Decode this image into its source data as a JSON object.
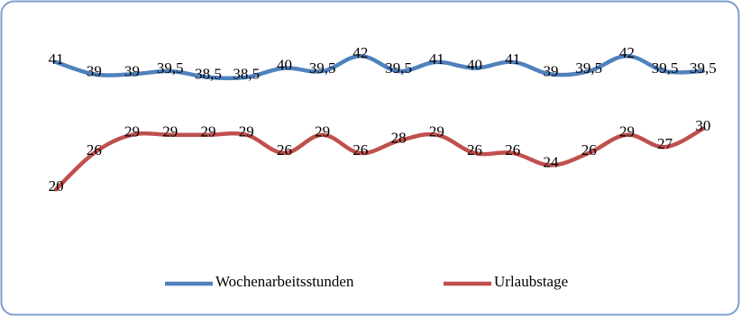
{
  "chart_data": {
    "type": "line",
    "categories": [
      null,
      null,
      null,
      null,
      null,
      null,
      null,
      null,
      null,
      null,
      null,
      null,
      null,
      null,
      null,
      null,
      null,
      null
    ],
    "ylim": [
      15,
      45
    ],
    "series": [
      {
        "name": "Wochenarbeitsstunden",
        "color": "#4f81bd",
        "values": [
          41,
          39,
          39,
          39.5,
          38.5,
          38.5,
          40,
          39.5,
          42,
          39.5,
          41,
          40,
          41,
          39,
          39.5,
          42,
          39.5,
          39.5
        ],
        "value_labels": [
          "41",
          "39",
          "39",
          "39,5",
          "38,5",
          "38,5",
          "40",
          "39,5",
          "42",
          "39,5",
          "41",
          "40",
          "41",
          "39",
          "39,5",
          "42",
          "39,5",
          "39,5"
        ]
      },
      {
        "name": "Urlaubstage",
        "color": "#c0504d",
        "values": [
          20,
          26,
          29,
          29,
          29,
          29,
          26,
          29,
          26,
          28,
          29,
          26,
          26,
          24,
          26,
          29,
          27,
          30
        ],
        "value_labels": [
          "20",
          "26",
          "29",
          "29",
          "29",
          "29",
          "26",
          "29",
          "26",
          "28",
          "29",
          "26",
          "26",
          "24",
          "26",
          "29",
          "27",
          "30"
        ]
      }
    ]
  }
}
